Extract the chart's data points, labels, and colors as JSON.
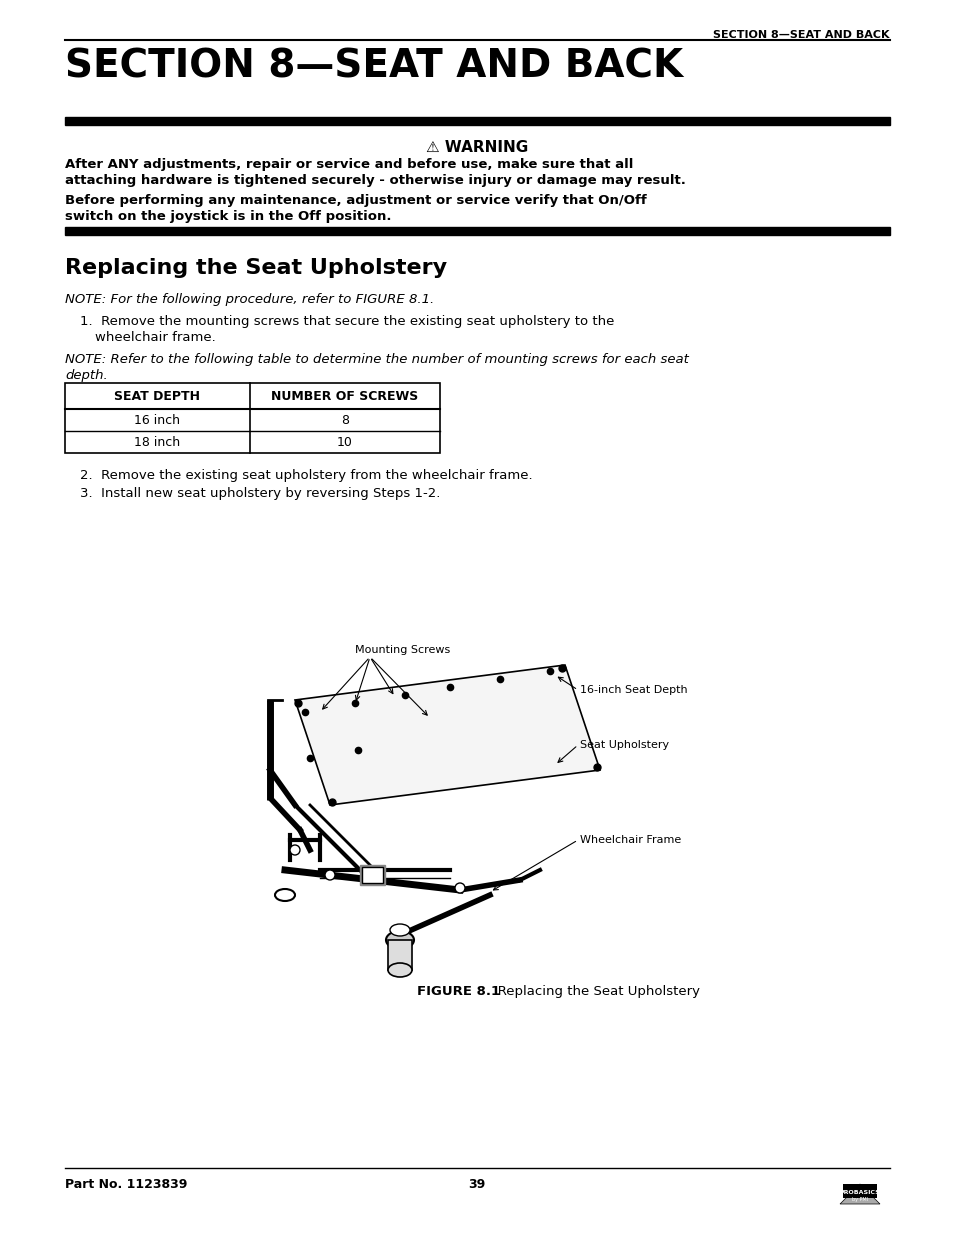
{
  "bg_color": "#ffffff",
  "header_text": "SECTION 8—SEAT AND BACK",
  "section_title": "SECTION 8—SEAT AND BACK",
  "subsection_title": "Replacing the Seat Upholstery",
  "warning_title": "⚠ WARNING",
  "warning_lines": [
    "After ANY adjustments, repair or service and before use, make sure that all",
    "attaching hardware is tightened securely - otherwise injury or damage may result.",
    "Before performing any maintenance, adjustment or service verify that On/Off",
    "switch on the joystick is in the Off position."
  ],
  "note1": "NOTE: For the following procedure, refer to FIGURE 8.1.",
  "step1a": "1.  Remove the mounting screws that secure the existing seat upholstery to the",
  "step1b": "wheelchair frame.",
  "note2a": "NOTE: Refer to the following table to determine the number of mounting screws for each seat",
  "note2b": "depth.",
  "table_headers": [
    "SEAT DEPTH",
    "NUMBER OF SCREWS"
  ],
  "table_rows": [
    [
      "16 inch",
      "8"
    ],
    [
      "18 inch",
      "10"
    ]
  ],
  "step2": "2.  Remove the existing seat upholstery from the wheelchair frame.",
  "step3": "3.  Install new seat upholstery by reversing Steps 1-2.",
  "fig_label_mounting": "Mounting Screws",
  "fig_label_depth": "16-inch Seat Depth",
  "fig_label_upholstery": "Seat Upholstery",
  "fig_label_frame": "Wheelchair Frame",
  "figure_caption_bold": "FIGURE 8.1",
  "figure_caption_normal": "   Replacing the Seat Upholstery",
  "footer_left": "Part No. 1123839",
  "footer_center": "39",
  "text_color": "#000000"
}
